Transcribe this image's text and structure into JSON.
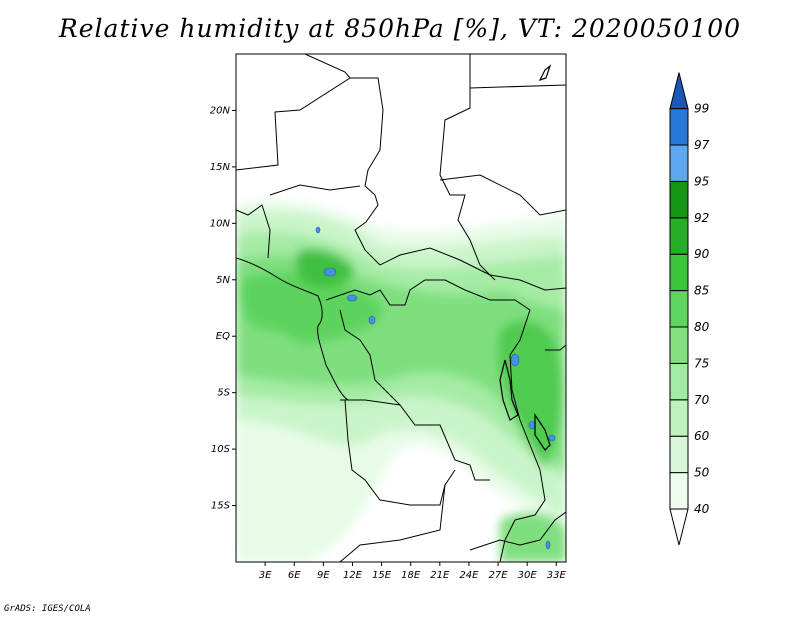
{
  "title": "Relative humidity at 850hPa [%], VT: 2020050100",
  "credit": "GrADS: IGES/COLA",
  "map": {
    "lon_range": [
      0,
      34
    ],
    "lat_range": [
      -20,
      25
    ],
    "lat_ticks": [
      {
        "value": 20,
        "label": "20N"
      },
      {
        "value": 15,
        "label": "15N"
      },
      {
        "value": 10,
        "label": "10N"
      },
      {
        "value": 5,
        "label": "5N"
      },
      {
        "value": 0,
        "label": "EQ"
      },
      {
        "value": -5,
        "label": "5S"
      },
      {
        "value": -10,
        "label": "10S"
      },
      {
        "value": -15,
        "label": "15S"
      }
    ],
    "lon_ticks": [
      {
        "value": 3,
        "label": "3E"
      },
      {
        "value": 6,
        "label": "6E"
      },
      {
        "value": 9,
        "label": "9E"
      },
      {
        "value": 12,
        "label": "12E"
      },
      {
        "value": 15,
        "label": "15E"
      },
      {
        "value": 18,
        "label": "18E"
      },
      {
        "value": 21,
        "label": "21E"
      },
      {
        "value": 24,
        "label": "24E"
      },
      {
        "value": 27,
        "label": "27E"
      },
      {
        "value": 30,
        "label": "30E"
      },
      {
        "value": 33,
        "label": "33E"
      }
    ]
  },
  "colorbar": {
    "levels": [
      "40",
      "50",
      "60",
      "70",
      "75",
      "80",
      "85",
      "90",
      "92",
      "95",
      "97",
      "99"
    ],
    "colors": [
      "#ffffff",
      "#eefcee",
      "#d8f7d8",
      "#bff2bf",
      "#a3eaa3",
      "#82e082",
      "#5fd45f",
      "#3cc43c",
      "#27ad27",
      "#149514",
      "#5fa8f0",
      "#2878d8",
      "#1858b8"
    ]
  }
}
